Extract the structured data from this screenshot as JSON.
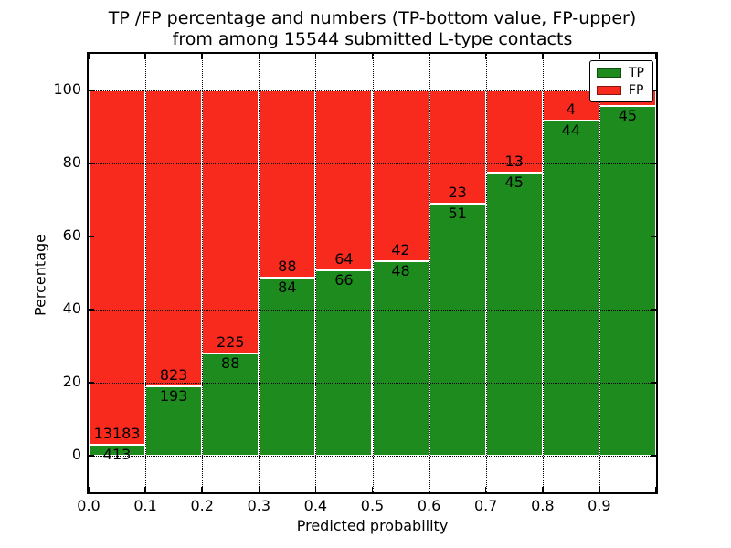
{
  "figure": {
    "background": "#ffffff"
  },
  "chart_data": {
    "type": "bar",
    "subtype": "stacked-percentage-histogram",
    "title_line1": "TP /FP percentage and numbers (TP-bottom value, FP-upper)",
    "title_line2": "from among 15544 submitted L-type contacts",
    "xlabel": "Predicted probability",
    "ylabel": "Percentage",
    "total_submitted": 15544,
    "xlim": [
      0.0,
      1.0
    ],
    "ylim": [
      -10,
      110
    ],
    "x_tick_labels": [
      "0.0",
      "0.1",
      "0.2",
      "0.3",
      "0.4",
      "0.5",
      "0.6",
      "0.7",
      "0.8",
      "0.9"
    ],
    "y_tick_labels": [
      "0",
      "20",
      "40",
      "60",
      "80",
      "100"
    ],
    "y_tick_values": [
      0,
      20,
      40,
      60,
      80,
      100
    ],
    "grid": "dotted-black-over-bars",
    "legend": {
      "position": "upper-right",
      "entries": [
        {
          "label": "TP",
          "color": "#1e8b1e"
        },
        {
          "label": "FP",
          "color": "#f8291d"
        }
      ]
    },
    "colors": {
      "tp": "#1e8b1e",
      "fp": "#f8291d",
      "bar_edge": "#ffffff",
      "grid": "#000000",
      "text": "#000000"
    },
    "bins": [
      {
        "x_start": 0.0,
        "x_end": 0.1,
        "tp": 413,
        "fp": 13183,
        "tp_pct": 3.0,
        "tp_label": "413",
        "fp_label": "13183"
      },
      {
        "x_start": 0.1,
        "x_end": 0.2,
        "tp": 193,
        "fp": 823,
        "tp_pct": 19.0,
        "tp_label": "193",
        "fp_label": "823"
      },
      {
        "x_start": 0.2,
        "x_end": 0.3,
        "tp": 88,
        "fp": 225,
        "tp_pct": 28.1,
        "tp_label": "88",
        "fp_label": "225"
      },
      {
        "x_start": 0.3,
        "x_end": 0.4,
        "tp": 84,
        "fp": 88,
        "tp_pct": 48.8,
        "tp_label": "84",
        "fp_label": "88"
      },
      {
        "x_start": 0.4,
        "x_end": 0.5,
        "tp": 66,
        "fp": 64,
        "tp_pct": 50.8,
        "tp_label": "66",
        "fp_label": "64"
      },
      {
        "x_start": 0.5,
        "x_end": 0.6,
        "tp": 48,
        "fp": 42,
        "tp_pct": 53.3,
        "tp_label": "48",
        "fp_label": "42"
      },
      {
        "x_start": 0.6,
        "x_end": 0.7,
        "tp": 51,
        "fp": 23,
        "tp_pct": 68.9,
        "tp_label": "51",
        "fp_label": "23"
      },
      {
        "x_start": 0.7,
        "x_end": 0.8,
        "tp": 45,
        "fp": 13,
        "tp_pct": 77.6,
        "tp_label": "45",
        "fp_label": "13"
      },
      {
        "x_start": 0.8,
        "x_end": 0.9,
        "tp": 44,
        "fp": 4,
        "tp_pct": 91.7,
        "tp_label": "44",
        "fp_label": "4"
      },
      {
        "x_start": 0.9,
        "x_end": 1.0,
        "tp": 45,
        "fp": null,
        "tp_pct": 95.7,
        "tp_label": "45",
        "fp_label": ""
      }
    ]
  }
}
